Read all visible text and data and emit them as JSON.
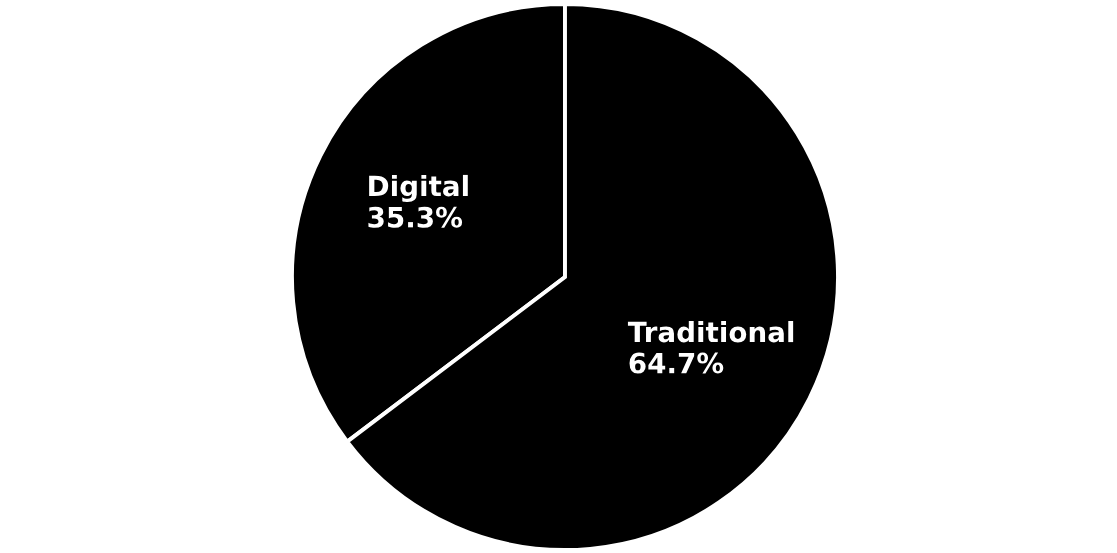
{
  "chart_data": {
    "type": "pie",
    "categories": [
      "Digital",
      "Traditional"
    ],
    "values": [
      35.3,
      64.7
    ],
    "value_labels": [
      "35.3%",
      "64.7%"
    ],
    "colors": [
      "#000000",
      "#000000"
    ]
  }
}
